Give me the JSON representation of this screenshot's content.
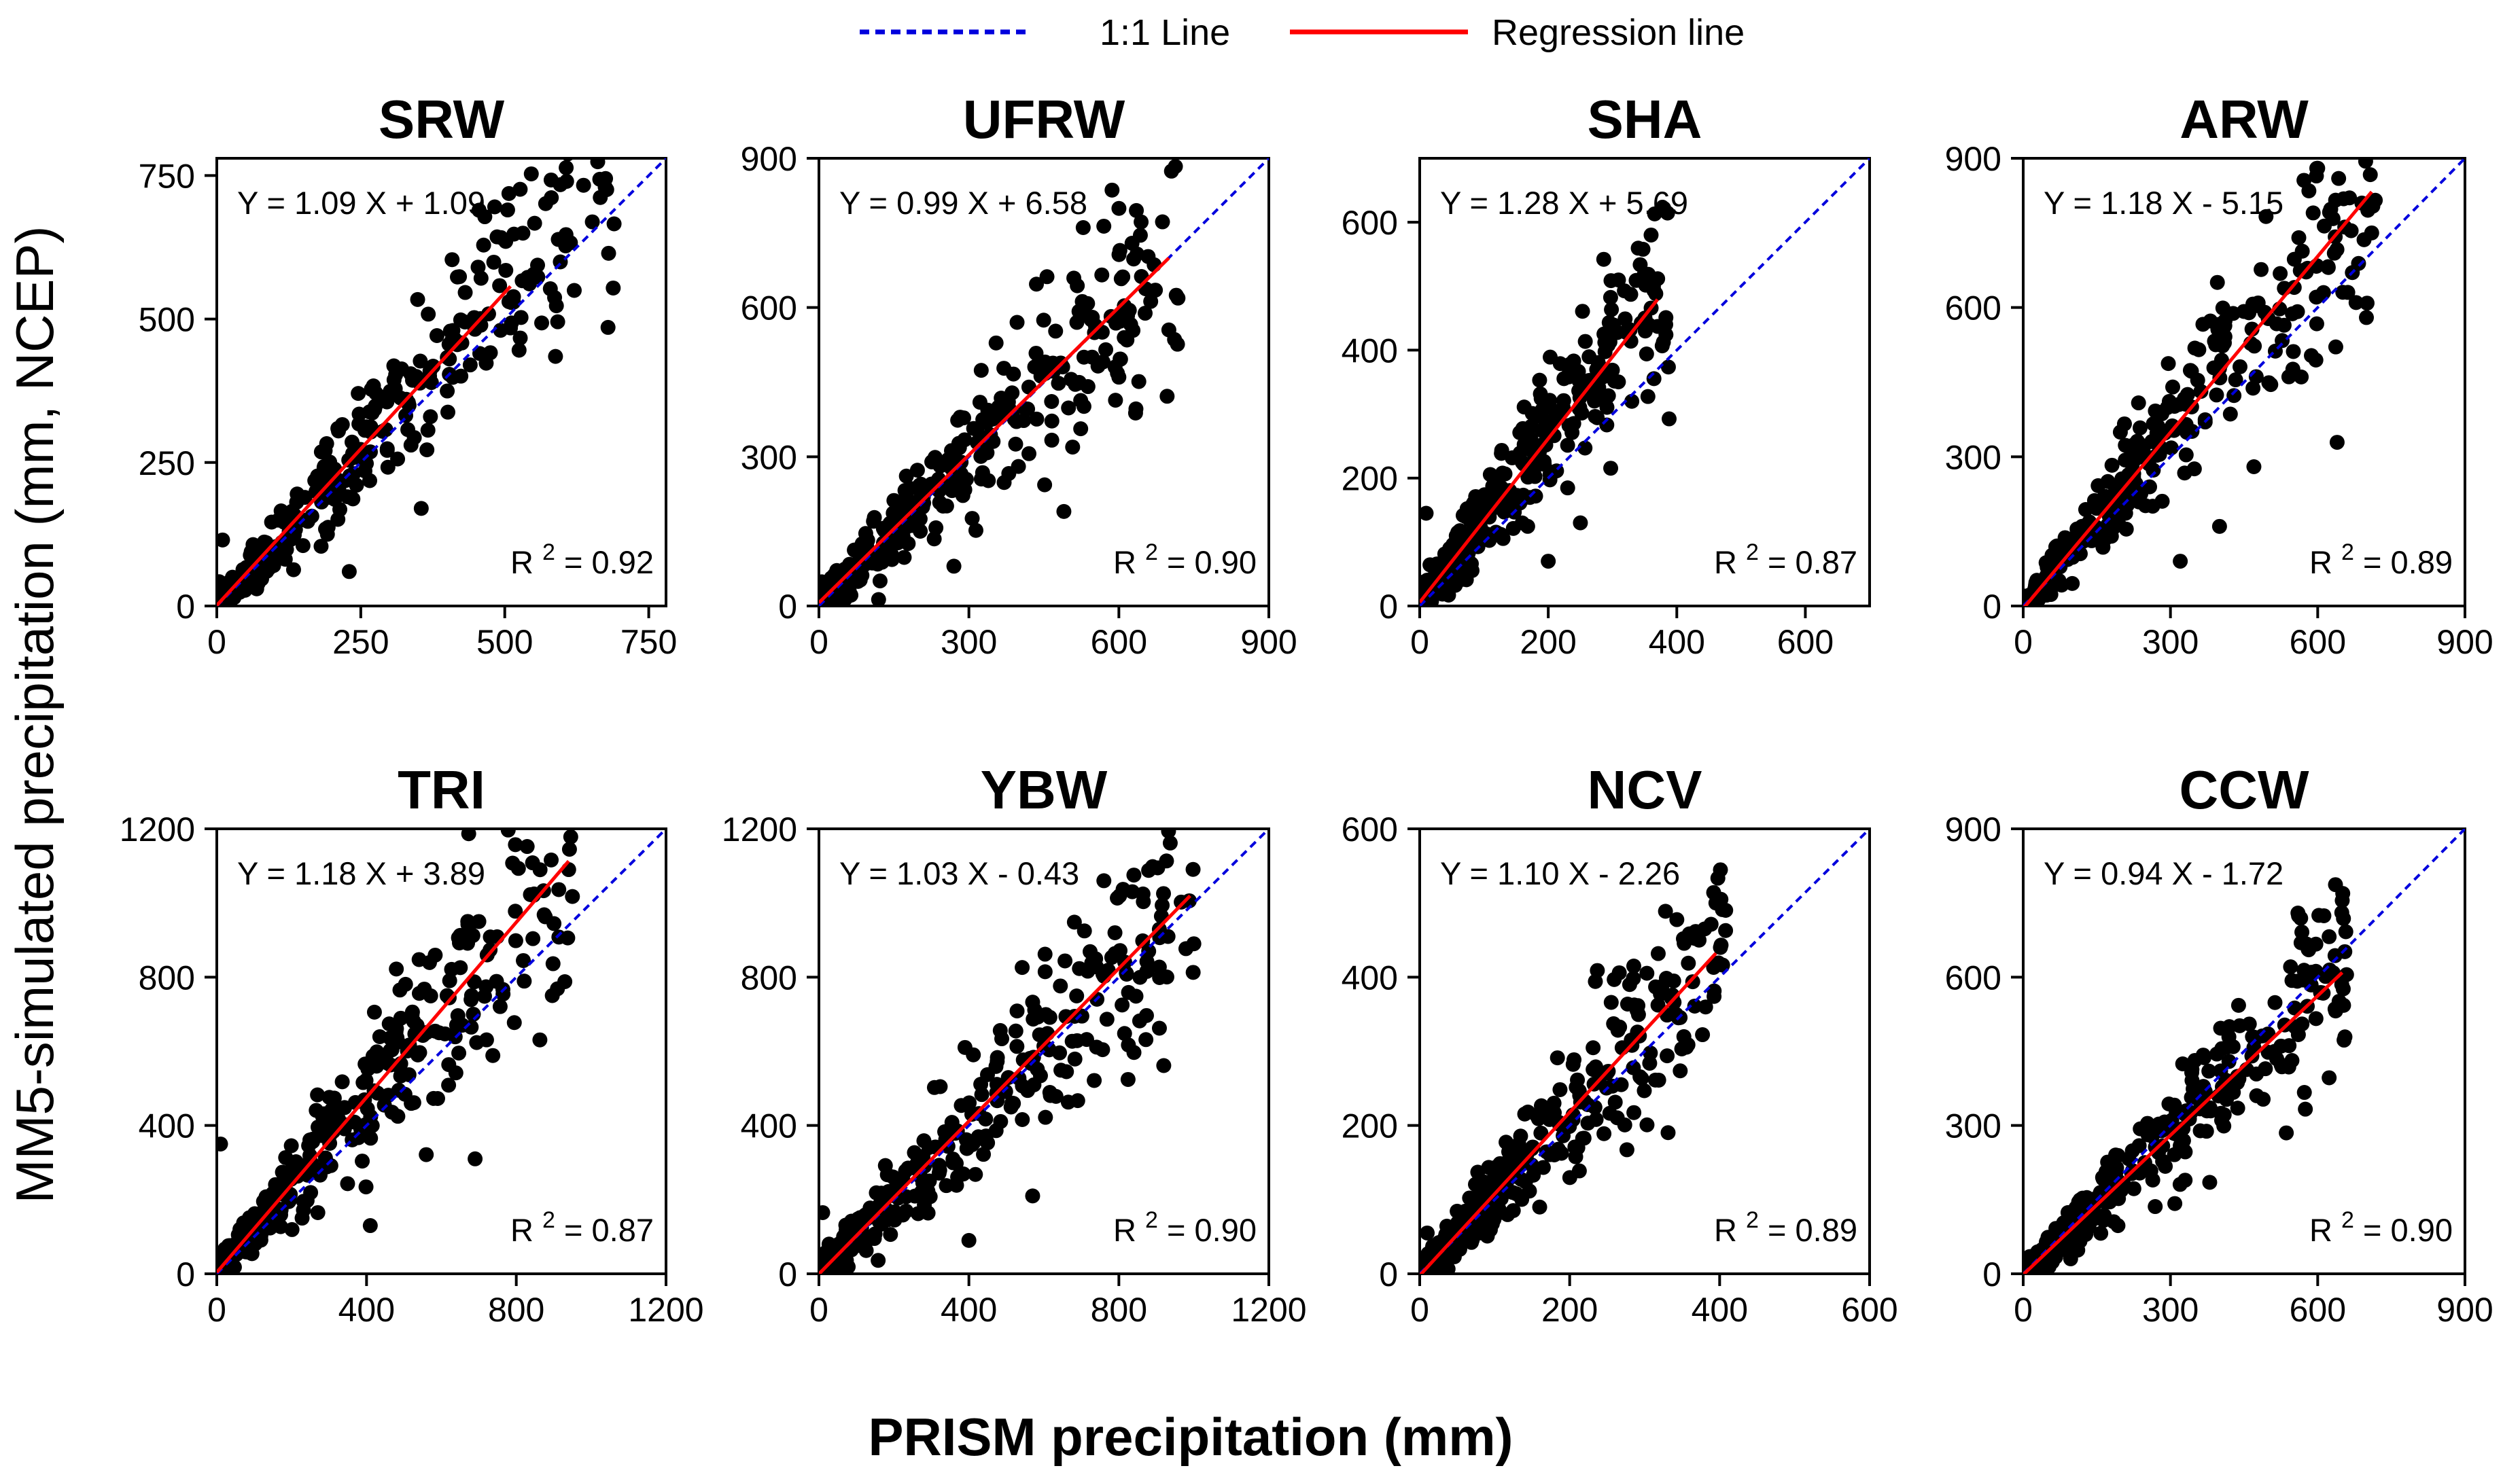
{
  "legend": {
    "one_to_one": {
      "label": "1:1 Line",
      "color": "#0000dd"
    },
    "regression": {
      "label": "Regression line",
      "color": "#ff0000"
    }
  },
  "xlabel": "PRISM precipitation (mm)",
  "ylabel": "MM5-simulated precipitation (mm, NCEP)",
  "chart_data": [
    {
      "type": "scatter",
      "title": "SRW",
      "xlim": [
        0,
        780
      ],
      "ylim": [
        0,
        780
      ],
      "ticks": [
        0,
        250,
        500,
        750
      ],
      "equation": "Y = 1.09 X + 1.09",
      "r2": "0.92",
      "slope": 1.09,
      "intercept": 1.09,
      "reg_x": [
        0,
        510
      ],
      "xmax": 690,
      "seed": 11,
      "outliers": [
        [
          355,
          170
        ],
        [
          230,
          60
        ],
        [
          10,
          115
        ],
        [
          440,
          420
        ],
        [
          505,
          690
        ],
        [
          410,
          480
        ]
      ]
    },
    {
      "type": "scatter",
      "title": "UFRW",
      "xlim": [
        0,
        900
      ],
      "ylim": [
        0,
        900
      ],
      "ticks": [
        0,
        300,
        600,
        900
      ],
      "equation": "Y = 0.99 X + 6.58",
      "r2": "0.90",
      "slope": 0.99,
      "intercept": 6.58,
      "reg_x": [
        0,
        700
      ],
      "xmax": 720,
      "seed": 23,
      "outliers": [
        [
          490,
          190
        ],
        [
          635,
          795
        ],
        [
          700,
          555
        ],
        [
          600,
          460
        ],
        [
          270,
          80
        ]
      ]
    },
    {
      "type": "scatter",
      "title": "SHA",
      "xlim": [
        0,
        700
      ],
      "ylim": [
        0,
        700
      ],
      "ticks": [
        0,
        200,
        400,
        600
      ],
      "equation": "Y = 1.28 X + 5.69",
      "r2": "0.87",
      "slope": 1.28,
      "intercept": 5.69,
      "reg_x": [
        0,
        370
      ],
      "xmax": 390,
      "seed": 37,
      "outliers": [
        [
          360,
          580
        ],
        [
          250,
          130
        ],
        [
          200,
          70
        ],
        [
          10,
          145
        ],
        [
          330,
          320
        ]
      ]
    },
    {
      "type": "scatter",
      "title": "ARW",
      "xlim": [
        0,
        900
      ],
      "ylim": [
        0,
        900
      ],
      "ticks": [
        0,
        300,
        600,
        900
      ],
      "equation": "Y = 1.18 X - 5.15",
      "r2": "0.89",
      "slope": 1.18,
      "intercept": -5.15,
      "reg_x": [
        0,
        710
      ],
      "xmax": 720,
      "seed": 41,
      "outliers": [
        [
          600,
          880
        ],
        [
          690,
          810
        ],
        [
          710,
          750
        ],
        [
          320,
          90
        ],
        [
          470,
          280
        ],
        [
          400,
          160
        ]
      ]
    },
    {
      "type": "scatter",
      "title": "TRI",
      "xlim": [
        0,
        1200
      ],
      "ylim": [
        0,
        1200
      ],
      "ticks": [
        0,
        400,
        800,
        1200
      ],
      "equation": "Y = 1.18 X + 3.89",
      "r2": "0.87",
      "slope": 1.18,
      "intercept": 3.89,
      "reg_x": [
        0,
        940
      ],
      "xmax": 950,
      "seed": 53,
      "outliers": [
        [
          940,
          1090
        ],
        [
          690,
          310
        ],
        [
          410,
          130
        ],
        [
          10,
          350
        ],
        [
          700,
          950
        ]
      ]
    },
    {
      "type": "scatter",
      "title": "YBW",
      "xlim": [
        0,
        1200
      ],
      "ylim": [
        0,
        1200
      ],
      "ticks": [
        0,
        400,
        800,
        1200
      ],
      "equation": "Y = 1.03 X - 0.43",
      "r2": "0.90",
      "slope": 1.03,
      "intercept": -0.43,
      "reg_x": [
        0,
        990
      ],
      "xmax": 1000,
      "seed": 67,
      "outliers": [
        [
          760,
          1060
        ],
        [
          1000,
          890
        ],
        [
          570,
          210
        ],
        [
          400,
          90
        ],
        [
          10,
          165
        ]
      ]
    },
    {
      "type": "scatter",
      "title": "NCV",
      "xlim": [
        0,
        600
      ],
      "ylim": [
        0,
        600
      ],
      "ticks": [
        0,
        200,
        400,
        600
      ],
      "equation": "Y = 1.10 X - 2.26",
      "r2": "0.89",
      "slope": 1.1,
      "intercept": -2.26,
      "reg_x": [
        0,
        395
      ],
      "xmax": 410,
      "seed": 79,
      "outliers": [
        [
          395,
          500
        ],
        [
          380,
          465
        ],
        [
          280,
          390
        ],
        [
          160,
          90
        ],
        [
          10,
          55
        ]
      ]
    },
    {
      "type": "scatter",
      "title": "CCW",
      "xlim": [
        0,
        900
      ],
      "ylim": [
        0,
        900
      ],
      "ticks": [
        0,
        300,
        600,
        900
      ],
      "equation": "Y = 0.94 X - 1.72",
      "r2": "0.90",
      "slope": 0.94,
      "intercept": -1.72,
      "reg_x": [
        0,
        650
      ],
      "xmax": 660,
      "seed": 97,
      "outliers": [
        [
          650,
          755
        ],
        [
          380,
          185
        ],
        [
          420,
          500
        ],
        [
          560,
          500
        ]
      ]
    }
  ]
}
